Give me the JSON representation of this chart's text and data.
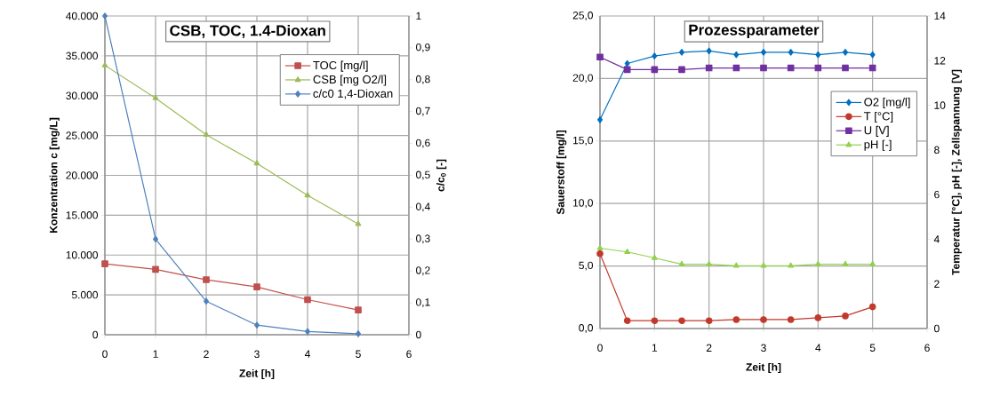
{
  "chart_data": [
    {
      "type": "line",
      "title": "CSB, TOC, 1.4-Dioxan",
      "xlabel": "Zeit [h]",
      "ylabel": "Konzentration c [mg/L]",
      "y2label": "c/c$_{0}$ [-]",
      "x": [
        0,
        1,
        2,
        3,
        4,
        5
      ],
      "xlim": [
        0,
        6
      ],
      "xticks": [
        0,
        1,
        2,
        3,
        4,
        5,
        6
      ],
      "ylim": [
        0,
        40000
      ],
      "yticks": [
        0,
        {
          "value": 5000,
          "label": "5.000"
        },
        {
          "value": 10000,
          "label": "10.000"
        },
        {
          "value": 15000,
          "label": "15.000"
        },
        {
          "value": 20000,
          "label": "20.000"
        },
        {
          "value": 25000,
          "label": "25.000"
        },
        {
          "value": 30000,
          "label": "30.000"
        },
        {
          "value": 35000,
          "label": "35.000"
        },
        {
          "value": 40000,
          "label": "40.000"
        }
      ],
      "y2lim": [
        0,
        1
      ],
      "y2ticks": [
        0,
        {
          "value": 0.1,
          "label": "0,1"
        },
        {
          "value": 0.2,
          "label": "0,2"
        },
        {
          "value": 0.3,
          "label": "0,3"
        },
        {
          "value": 0.4,
          "label": "0,4"
        },
        {
          "value": 0.5,
          "label": "0,5"
        },
        {
          "value": 0.6,
          "label": "0,6"
        },
        {
          "value": 0.7,
          "label": "0,7"
        },
        {
          "value": 0.8,
          "label": "0,8"
        },
        {
          "value": 0.9,
          "label": "0,9"
        },
        1
      ],
      "grid": true,
      "legend": "top right",
      "series": [
        {
          "name": "TOC [mg/l]",
          "color": "#c0504d",
          "marker": "square",
          "values": [
            8900,
            8200,
            6900,
            6000,
            4400,
            3100
          ]
        },
        {
          "name": "CSB [mg O2/l]",
          "color": "#9bbb59",
          "marker": "triangle",
          "values": [
            33800,
            29700,
            25100,
            21500,
            17500,
            13900
          ]
        },
        {
          "name": "c/c0 1,4-Dioxan",
          "color": "#4f81bd",
          "marker": "diamond",
          "axis": "y2",
          "values": [
            1,
            0.3,
            0.105,
            0.03,
            0.01,
            0.003
          ]
        }
      ]
    },
    {
      "type": "line",
      "title": "Prozessparameter",
      "xlabel": "Zeit [h]",
      "ylabel": "Sauerstoff [mg/l]",
      "y2label": "Temperatur [°C], pH [-], Zellspannung [V]",
      "x": [
        0,
        0.5,
        1,
        1.5,
        2,
        2.5,
        3,
        3.5,
        4,
        4.5,
        5
      ],
      "xlim": [
        0,
        6
      ],
      "xticks": [
        0,
        1,
        2,
        3,
        4,
        5,
        6
      ],
      "ylim": [
        0,
        25
      ],
      "yticks": [
        {
          "value": 0,
          "label": "0,0"
        },
        {
          "value": 5,
          "label": "5,0"
        },
        {
          "value": 10,
          "label": "10,0"
        },
        {
          "value": 15,
          "label": "15,0"
        },
        {
          "value": 20,
          "label": "20,0"
        },
        {
          "value": 25,
          "label": "25,0"
        }
      ],
      "y2lim": [
        0,
        14
      ],
      "y2ticks": [
        0,
        2,
        4,
        6,
        8,
        10,
        12,
        14
      ],
      "grid": true,
      "legend": "right",
      "series": [
        {
          "name": "O2 [mg/l]",
          "color": "#0070c0",
          "marker": "diamond",
          "values": [
            16.7,
            21.2,
            21.8,
            22.1,
            22.2,
            21.9,
            22.1,
            22.1,
            21.9,
            22.1,
            21.9
          ]
        },
        {
          "name": "T [°C]",
          "color": "#c0392b",
          "marker": "circle",
          "axis": "y2",
          "values": [
            3.35,
            0.35,
            0.35,
            0.35,
            0.35,
            0.4,
            0.4,
            0.4,
            0.48,
            0.56,
            0.97
          ]
        },
        {
          "name": "U [V]",
          "color": "#7030a0",
          "marker": "square",
          "axis": "y2",
          "values": [
            12.16,
            11.6,
            11.6,
            11.6,
            11.67,
            11.67,
            11.67,
            11.67,
            11.67,
            11.67,
            11.67
          ]
        },
        {
          "name": "pH [-]",
          "color": "#92d050",
          "marker": "triangle",
          "axis": "y2",
          "values": [
            3.6,
            3.43,
            3.16,
            2.88,
            2.88,
            2.81,
            2.81,
            2.81,
            2.88,
            2.88,
            2.88
          ]
        }
      ]
    }
  ]
}
